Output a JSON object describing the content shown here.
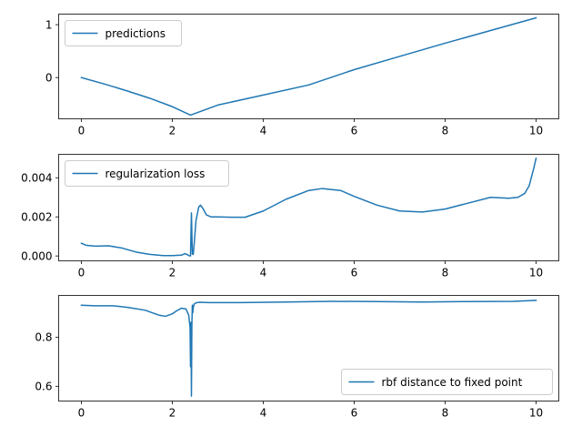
{
  "chart_data": [
    {
      "type": "line",
      "title": "",
      "xlabel": "",
      "ylabel": "",
      "xlim": [
        -0.5,
        10.5
      ],
      "ylim": [
        -0.78,
        1.2
      ],
      "xticks": [
        0,
        2,
        4,
        6,
        8,
        10
      ],
      "xtick_labels": [
        "0",
        "2",
        "4",
        "6",
        "8",
        "10"
      ],
      "yticks": [
        0,
        1
      ],
      "ytick_labels": [
        "0",
        "1"
      ],
      "grid": false,
      "legend_position": "upper-left",
      "series": [
        {
          "name": "predictions",
          "color": "#1f77b4",
          "x": [
            0,
            0.5,
            1.0,
            1.5,
            2.0,
            2.4,
            3.0,
            4.0,
            5.0,
            6.0,
            7.0,
            8.0,
            9.0,
            10.0
          ],
          "y": [
            0.0,
            -0.12,
            -0.25,
            -0.39,
            -0.55,
            -0.71,
            -0.52,
            -0.33,
            -0.14,
            0.15,
            0.4,
            0.65,
            0.89,
            1.13
          ]
        }
      ]
    },
    {
      "type": "line",
      "title": "",
      "xlabel": "",
      "ylabel": "",
      "xlim": [
        -0.5,
        10.5
      ],
      "ylim": [
        -0.00025,
        0.0052
      ],
      "xticks": [
        0,
        2,
        4,
        6,
        8,
        10
      ],
      "xtick_labels": [
        "0",
        "2",
        "4",
        "6",
        "8",
        "10"
      ],
      "yticks": [
        0,
        0.002,
        0.004
      ],
      "ytick_labels": [
        "0.000",
        "0.002",
        "0.004"
      ],
      "grid": false,
      "legend_position": "upper-left",
      "series": [
        {
          "name": "regularization loss",
          "color": "#1f77b4",
          "x": [
            0,
            0.1,
            0.3,
            0.6,
            0.9,
            1.2,
            1.5,
            1.8,
            2.0,
            2.2,
            2.28,
            2.32,
            2.36,
            2.4,
            2.42,
            2.44,
            2.46,
            2.48,
            2.52,
            2.58,
            2.62,
            2.68,
            2.75,
            2.85,
            3.0,
            3.3,
            3.6,
            4.0,
            4.5,
            5.0,
            5.3,
            5.7,
            6.0,
            6.5,
            7.0,
            7.5,
            8.0,
            8.5,
            9.0,
            9.4,
            9.6,
            9.75,
            9.85,
            9.95,
            10.0
          ],
          "y": [
            0.00065,
            0.00055,
            0.0005,
            0.00052,
            0.0004,
            0.0002,
            8e-05,
            2e-05,
            2e-05,
            4e-05,
            0.00012,
            8e-05,
            2e-05,
            0.0,
            0.0022,
            0.0001,
            8e-05,
            0.0006,
            0.0018,
            0.0025,
            0.0026,
            0.0024,
            0.0021,
            0.002,
            0.002,
            0.00198,
            0.00198,
            0.0023,
            0.0029,
            0.00335,
            0.00345,
            0.00335,
            0.00305,
            0.0026,
            0.0023,
            0.00225,
            0.0024,
            0.0027,
            0.003,
            0.00295,
            0.003,
            0.0032,
            0.0036,
            0.0045,
            0.005
          ]
        }
      ]
    },
    {
      "type": "line",
      "title": "",
      "xlabel": "",
      "ylabel": "",
      "xlim": [
        -0.5,
        10.5
      ],
      "ylim": [
        0.54,
        0.97
      ],
      "xticks": [
        0,
        2,
        4,
        6,
        8,
        10
      ],
      "xtick_labels": [
        "0",
        "2",
        "4",
        "6",
        "8",
        "10"
      ],
      "yticks": [
        0.6,
        0.8
      ],
      "ytick_labels": [
        "0.6",
        "0.8"
      ],
      "grid": false,
      "legend_position": "lower-right",
      "series": [
        {
          "name": "rbf distance to fixed point",
          "color": "#1f77b4",
          "x": [
            0,
            0.3,
            0.7,
            1.0,
            1.4,
            1.7,
            1.85,
            2.0,
            2.1,
            2.2,
            2.3,
            2.36,
            2.39,
            2.4,
            2.41,
            2.42,
            2.43,
            2.44,
            2.45,
            2.46,
            2.48,
            2.52,
            2.6,
            2.8,
            3.5,
            4.5,
            5.5,
            6.5,
            7.5,
            8.5,
            9.5,
            10.0
          ],
          "y": [
            0.93,
            0.928,
            0.928,
            0.922,
            0.91,
            0.89,
            0.885,
            0.895,
            0.908,
            0.918,
            0.915,
            0.89,
            0.84,
            0.68,
            0.86,
            0.56,
            0.85,
            0.93,
            0.9,
            0.92,
            0.935,
            0.94,
            0.942,
            0.941,
            0.941,
            0.943,
            0.946,
            0.945,
            0.943,
            0.945,
            0.946,
            0.95
          ]
        }
      ]
    }
  ]
}
